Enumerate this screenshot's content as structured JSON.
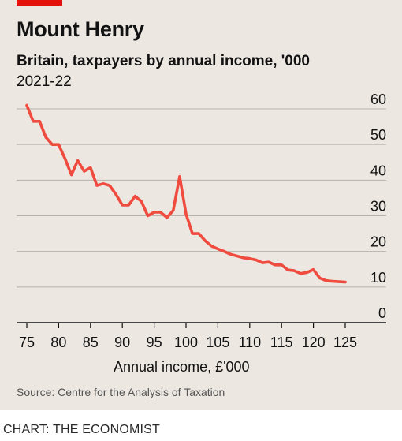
{
  "colors": {
    "background": "#ece7e1",
    "accent": "#e3120b",
    "line": "#ef4b3f",
    "grid": "#b7b2ac",
    "axis": "#121212"
  },
  "chart_data": {
    "type": "line",
    "title": "Mount Henry",
    "subtitle": "Britain, taxpayers by annual income, '000",
    "subtitle2": "2021-22",
    "xlabel": "Annual income, £'000",
    "ylabel": "",
    "xlim": [
      75,
      125
    ],
    "ylim": [
      0,
      60
    ],
    "x_ticks": [
      75,
      80,
      85,
      90,
      95,
      100,
      105,
      110,
      115,
      120,
      125
    ],
    "y_ticks": [
      0,
      10,
      20,
      30,
      40,
      50,
      60
    ],
    "y_axis_side": "right",
    "grid": true,
    "legend": "none",
    "series": [
      {
        "x": [
          75,
          76,
          77,
          78,
          79,
          80,
          81,
          82,
          83,
          84,
          85,
          86,
          87,
          88,
          89,
          90,
          91,
          92,
          93,
          94,
          95,
          96,
          97,
          98,
          99,
          100,
          101,
          102,
          103,
          104,
          105,
          106,
          107,
          108,
          109,
          110,
          111,
          112,
          113,
          114,
          115,
          116,
          117,
          118,
          119,
          120,
          121,
          122,
          123,
          124,
          125
        ],
        "values": [
          61,
          56.5,
          56.5,
          52,
          50,
          50,
          46,
          41.5,
          45.5,
          42.5,
          43.5,
          38.5,
          39,
          38.5,
          36,
          33,
          33,
          35.5,
          34,
          30,
          31,
          31,
          29.5,
          31.5,
          41,
          30.5,
          25,
          25,
          23,
          21.5,
          20.7,
          20,
          19.2,
          18.7,
          18.2,
          18,
          17.6,
          16.8,
          17,
          16.2,
          16.2,
          14.8,
          14.6,
          13.8,
          14.1,
          14.9,
          12.5,
          11.8,
          11.6,
          11.5,
          11.4
        ]
      }
    ]
  },
  "source": "Source: Centre for the Analysis of Taxation",
  "credit": "CHART: THE ECONOMIST"
}
